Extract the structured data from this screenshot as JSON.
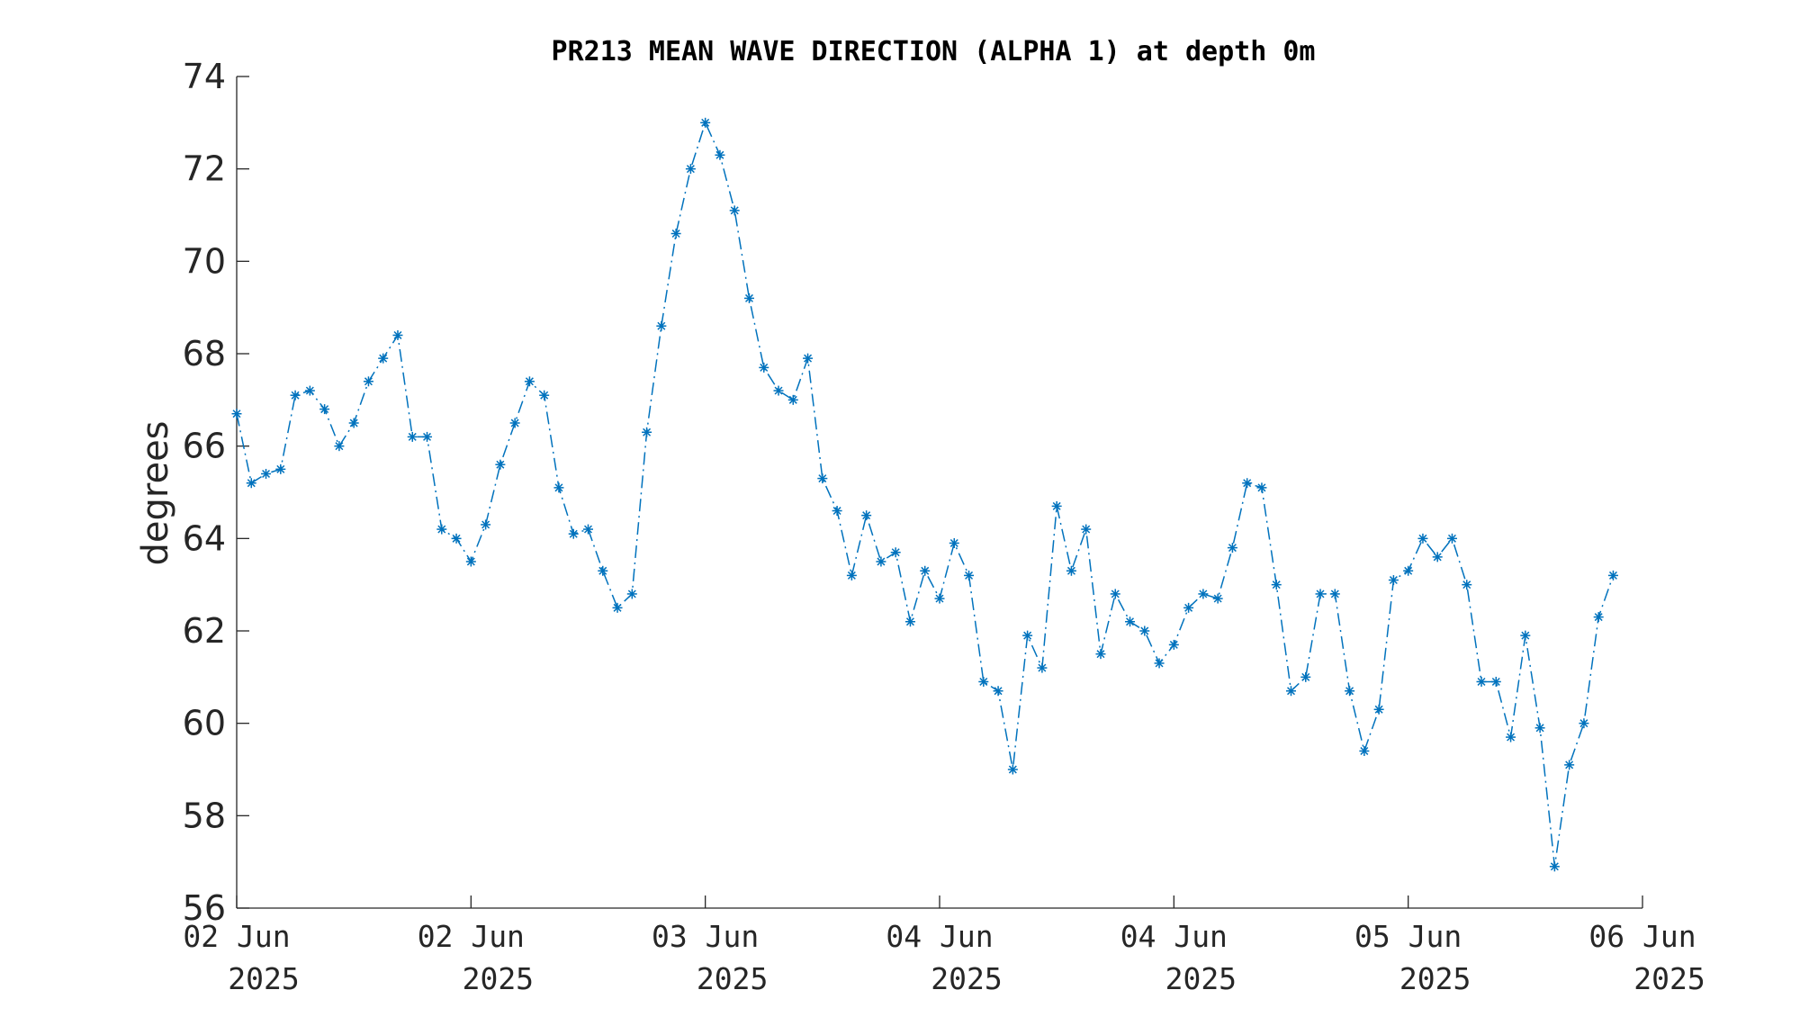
{
  "chart_data": {
    "type": "line",
    "title": "PR213 MEAN WAVE DIRECTION (ALPHA 1) at depth 0m",
    "xlabel": "",
    "ylabel": "degrees",
    "ylim": [
      56,
      74
    ],
    "yticks": [
      "56",
      "58",
      "60",
      "62",
      "64",
      "66",
      "68",
      "70",
      "72",
      "74"
    ],
    "xlim_index": [
      0,
      96
    ],
    "xticks": [
      {
        "index": 0,
        "line1": "02 Jun",
        "line2": "2025"
      },
      {
        "index": 16,
        "line1": "02 Jun",
        "line2": "2025"
      },
      {
        "index": 32,
        "line1": "03 Jun",
        "line2": "2025"
      },
      {
        "index": 48,
        "line1": "04 Jun",
        "line2": "2025"
      },
      {
        "index": 64,
        "line1": "04 Jun",
        "line2": "2025"
      },
      {
        "index": 80,
        "line1": "05 Jun",
        "line2": "2025"
      },
      {
        "index": 96,
        "line1": "06 Jun",
        "line2": "2025"
      }
    ],
    "grid": false,
    "marker": "asterisk",
    "line_style": "dash-dot",
    "color": "#0072BD",
    "series": [
      {
        "values": [
          66.7,
          65.2,
          65.4,
          65.5,
          67.1,
          67.2,
          66.8,
          66.0,
          66.5,
          67.4,
          67.9,
          68.4,
          66.2,
          66.2,
          64.2,
          64.0,
          63.5,
          64.3,
          65.6,
          66.5,
          67.4,
          67.1,
          65.1,
          64.1,
          64.2,
          63.3,
          62.5,
          62.8,
          66.3,
          68.6,
          70.6,
          72.0,
          73.0,
          72.3,
          71.1,
          69.2,
          67.7,
          67.2,
          67.0,
          67.9,
          65.3,
          64.6,
          63.2,
          64.5,
          63.5,
          63.7,
          62.2,
          63.3,
          62.7,
          63.9,
          63.2,
          60.9,
          60.7,
          59.0,
          61.9,
          61.2,
          64.7,
          63.3,
          64.2,
          61.5,
          62.8,
          62.2,
          62.0,
          61.3,
          61.7,
          62.5,
          62.8,
          62.7,
          63.8,
          65.2,
          65.1,
          63.0,
          60.7,
          61.0,
          62.8,
          62.8,
          60.7,
          59.4,
          60.3,
          63.1,
          63.3,
          64.0,
          63.6,
          64.0,
          63.0,
          60.9,
          60.9,
          59.7,
          61.9,
          59.9,
          56.9,
          59.1,
          60.0,
          62.3,
          63.2
        ]
      }
    ]
  }
}
